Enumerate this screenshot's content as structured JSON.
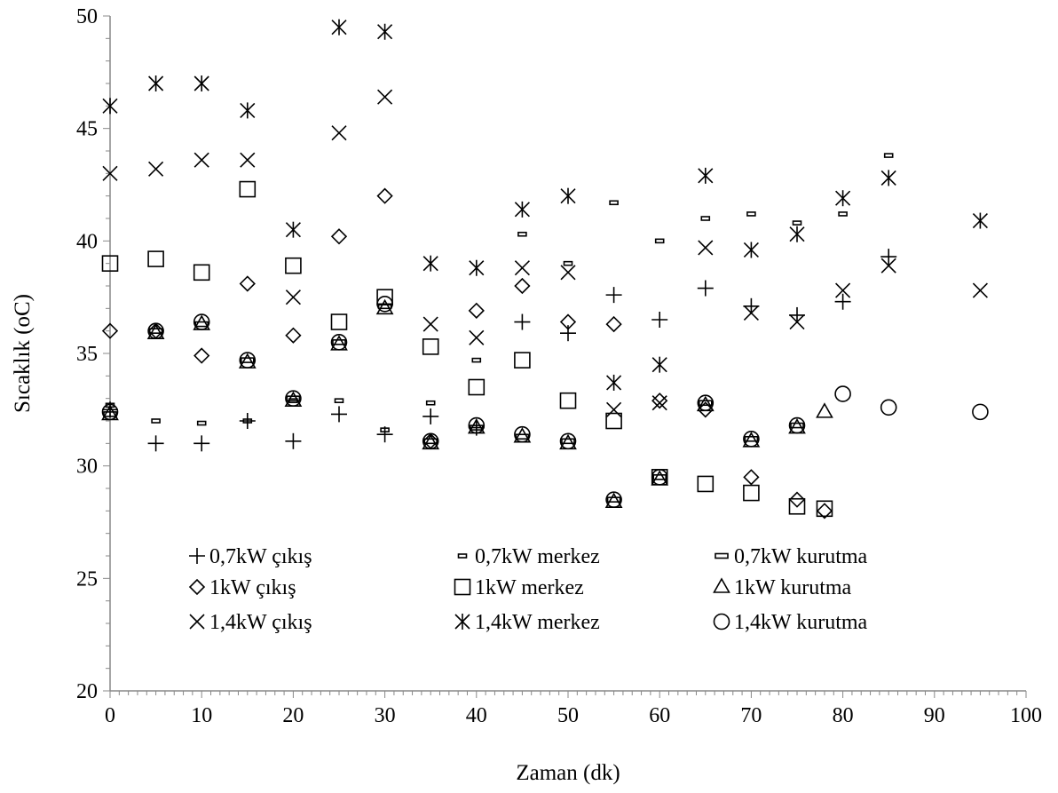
{
  "chart_data": {
    "type": "scatter",
    "xlabel": "Zaman (dk)",
    "ylabel": "Sıcaklık (oC)",
    "xlim": [
      0,
      100
    ],
    "ylim": [
      20,
      50
    ],
    "xticks": [
      "0",
      "10",
      "20",
      "30",
      "40",
      "50",
      "60",
      "70",
      "80",
      "90",
      "100"
    ],
    "yticks": [
      "20",
      "25",
      "30",
      "35",
      "40",
      "45",
      "50"
    ],
    "grid": false,
    "legend_position": "bottom-center",
    "series": [
      {
        "name": "0,7kW çıkış",
        "marker": "plus",
        "x": [
          0,
          5,
          10,
          15,
          20,
          25,
          30,
          35,
          40,
          45,
          50,
          55,
          60,
          65,
          70,
          75,
          80,
          85
        ],
        "y": [
          32.5,
          31.0,
          31.0,
          32.0,
          31.1,
          32.3,
          31.4,
          32.2,
          31.7,
          36.4,
          35.9,
          37.6,
          36.5,
          37.9,
          37.1,
          36.7,
          37.3,
          39.3
        ]
      },
      {
        "name": "0,7kW merkez",
        "marker": "dash-small",
        "x": [
          0,
          5,
          10,
          15,
          20,
          25,
          30,
          35,
          40,
          45,
          50,
          55,
          60,
          65,
          70,
          75,
          80,
          85
        ],
        "y": [
          32.7,
          32.0,
          31.9,
          32.0,
          32.9,
          32.9,
          31.6,
          32.8,
          34.7,
          40.3,
          39.0,
          41.7,
          40.0,
          41.0,
          41.2,
          40.8,
          41.2,
          43.8
        ]
      },
      {
        "name": "0,7kW kurutma",
        "marker": "dash-wide",
        "x": [
          0,
          5,
          10,
          15,
          20,
          25,
          30,
          35,
          40,
          45,
          50,
          55,
          60,
          65,
          70,
          75
        ],
        "y": [
          32.3,
          36.0,
          36.3,
          34.7,
          33.0,
          35.5,
          37.1,
          31.1,
          31.7,
          31.3,
          31.1,
          28.5,
          29.5,
          32.8,
          31.2,
          31.8
        ]
      },
      {
        "name": "1kW çıkış",
        "marker": "diamond",
        "x": [
          0,
          5,
          10,
          15,
          20,
          25,
          30,
          35,
          40,
          45,
          50,
          55,
          60,
          65,
          70,
          75,
          78
        ],
        "y": [
          36.0,
          36.0,
          34.9,
          38.1,
          35.8,
          40.2,
          42.0,
          31.1,
          36.9,
          38.0,
          36.4,
          36.3,
          32.9,
          32.5,
          29.5,
          28.5,
          28.0
        ]
      },
      {
        "name": "1kW merkez",
        "marker": "square",
        "x": [
          0,
          5,
          10,
          15,
          20,
          25,
          30,
          35,
          40,
          45,
          50,
          55,
          60,
          65,
          70,
          75,
          78
        ],
        "y": [
          39.0,
          39.2,
          38.6,
          42.3,
          38.9,
          36.4,
          37.5,
          35.3,
          33.5,
          34.7,
          32.9,
          32.0,
          29.5,
          29.2,
          28.8,
          28.2,
          28.1
        ]
      },
      {
        "name": "1kW kurutma",
        "marker": "triangle",
        "x": [
          0,
          5,
          10,
          15,
          20,
          25,
          30,
          35,
          40,
          45,
          50,
          55,
          60,
          65,
          70,
          75,
          78
        ],
        "y": [
          32.3,
          35.9,
          36.3,
          34.6,
          32.9,
          35.4,
          37.0,
          31.0,
          31.7,
          31.3,
          31.0,
          28.4,
          29.4,
          32.7,
          31.1,
          31.7,
          32.4
        ]
      },
      {
        "name": "1,4kW çıkış",
        "marker": "x",
        "x": [
          0,
          5,
          10,
          15,
          20,
          25,
          30,
          35,
          40,
          45,
          50,
          55,
          60,
          65,
          70,
          75,
          80,
          85,
          95
        ],
        "y": [
          43.0,
          43.2,
          43.6,
          43.6,
          37.5,
          44.8,
          46.4,
          36.3,
          35.7,
          38.8,
          38.6,
          32.5,
          32.8,
          39.7,
          36.8,
          36.4,
          37.8,
          38.9,
          37.8
        ]
      },
      {
        "name": "1,4kW merkez",
        "marker": "asterisk",
        "x": [
          0,
          5,
          10,
          15,
          20,
          25,
          30,
          35,
          40,
          45,
          50,
          55,
          60,
          65,
          70,
          75,
          80,
          85,
          95
        ],
        "y": [
          46.0,
          47.0,
          47.0,
          45.8,
          40.5,
          49.5,
          49.3,
          39.0,
          38.8,
          41.4,
          42.0,
          33.7,
          34.5,
          42.9,
          39.6,
          40.3,
          41.9,
          42.8,
          40.9
        ]
      },
      {
        "name": "1,4kW kurutma",
        "marker": "circle",
        "x": [
          0,
          5,
          10,
          15,
          20,
          25,
          30,
          35,
          40,
          45,
          50,
          55,
          60,
          65,
          70,
          75,
          80,
          85,
          95
        ],
        "y": [
          32.4,
          36.0,
          36.4,
          34.7,
          33.0,
          35.5,
          37.2,
          31.1,
          31.8,
          31.4,
          31.1,
          28.5,
          29.5,
          32.8,
          31.2,
          31.8,
          33.2,
          32.6,
          32.4
        ]
      }
    ]
  }
}
